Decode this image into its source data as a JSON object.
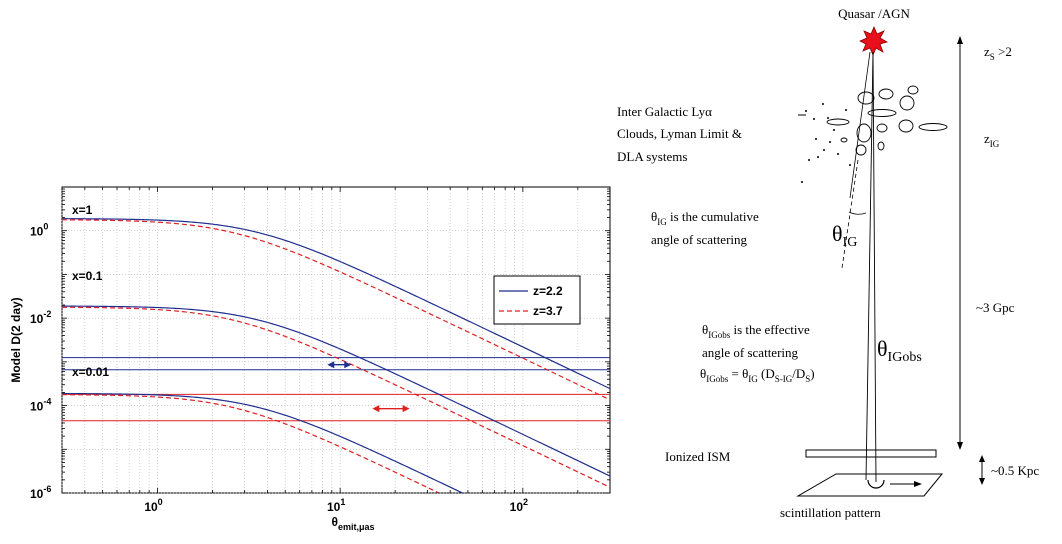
{
  "chart_data": {
    "type": "line",
    "xscale": "log",
    "yscale": "log",
    "xlim": [
      0.3,
      300
    ],
    "ylim": [
      1e-06,
      10
    ],
    "grid": true,
    "xlabel_main": "θ",
    "xlabel_sub": "emit,μas",
    "ylabel": "Model D(2 day)",
    "x_ticks": [
      {
        "value": 1,
        "base": "10",
        "exp": "0"
      },
      {
        "value": 10,
        "base": "10",
        "exp": "1"
      },
      {
        "value": 100,
        "base": "10",
        "exp": "2"
      }
    ],
    "y_ticks": [
      {
        "value": 1,
        "base": "10",
        "exp": "0"
      },
      {
        "value": 0.01,
        "base": "10",
        "exp": "-2"
      },
      {
        "value": 0.0001,
        "base": "10",
        "exp": "-4"
      },
      {
        "value": 1e-06,
        "base": "10",
        "exp": "-6"
      }
    ],
    "legend": {
      "placement": "right",
      "entries": [
        {
          "label": "z=2.2",
          "color": "#1f2f8f",
          "dash": "solid"
        },
        {
          "label": "z=3.7",
          "color": "#e02020",
          "dash": "dashed"
        }
      ]
    },
    "curve_annotations": [
      "x=1",
      "x=0.1",
      "x=0.01"
    ],
    "series": [
      {
        "z": "2.2",
        "x_param": "1",
        "D0": 1.9,
        "theta_c": 3.4
      },
      {
        "z": "3.7",
        "x_param": "1",
        "D0": 1.8,
        "theta_c": 2.6
      },
      {
        "z": "2.2",
        "x_param": "0.1",
        "D0": 0.019,
        "theta_c": 3.4
      },
      {
        "z": "3.7",
        "x_param": "0.1",
        "D0": 0.018,
        "theta_c": 2.6
      },
      {
        "z": "2.2",
        "x_param": "0.01",
        "D0": 0.00019,
        "theta_c": 3.4
      },
      {
        "z": "3.7",
        "x_param": "0.01",
        "D0": 0.00018,
        "theta_c": 2.6
      }
    ],
    "hlines": [
      {
        "y": 0.00125,
        "color": "#1f2f8f"
      },
      {
        "y": 0.00066,
        "color": "#1f2f8f"
      },
      {
        "y": 0.00018,
        "color": "#e02020"
      },
      {
        "y": 4.5e-05,
        "color": "#e02020"
      }
    ],
    "arrows": [
      {
        "x1": 8.5,
        "x2": 11.5,
        "y": 0.00086,
        "color": "#1f2f8f"
      },
      {
        "x1": 15,
        "x2": 24,
        "y": 8.5e-05,
        "color": "#e02020"
      }
    ]
  },
  "diagram": {
    "source_label": "Quasar /AGN",
    "zs_label": "z",
    "zs_sub": "S",
    "zs_tail": " >2",
    "zig_label": "z",
    "zig_sub": "IG",
    "clouds_line1": "Inter Galactic Lyα",
    "clouds_line2": "Clouds, Lyman Limit &",
    "clouds_line3": "DLA systems",
    "theta_ig_line1_sym": "θ",
    "theta_ig_line1_sub": "IG",
    "theta_ig_line1_rest": " is the cumulative",
    "theta_ig_line2": "angle of scattering",
    "theta_ig_angle_sym": "θ",
    "theta_ig_angle_sub": "IG",
    "theta_obs_line1_sym": "θ",
    "theta_obs_line1_sub": "IGobs",
    "theta_obs_line1_rest": " is the effective",
    "theta_obs_line2": "angle of scattering",
    "theta_obs_eq_a": "θ",
    "theta_obs_eq_a_sub": "IGobs",
    "theta_obs_eq_b": " = θ",
    "theta_obs_eq_b_sub": "IG",
    "theta_obs_eq_c": " (D",
    "theta_obs_eq_c_sub": "S-IG",
    "theta_obs_eq_d": "/D",
    "theta_obs_eq_d_sub": "S",
    "theta_obs_eq_e": ")",
    "theta_obs_angle_sym": "θ",
    "theta_obs_angle_sub": "IGobs",
    "distance_label": "~3 Gpc",
    "ism_label": "Ionized ISM",
    "ism_dist_label": "~0.5 Kpc",
    "pattern_label": "scintillation pattern"
  }
}
